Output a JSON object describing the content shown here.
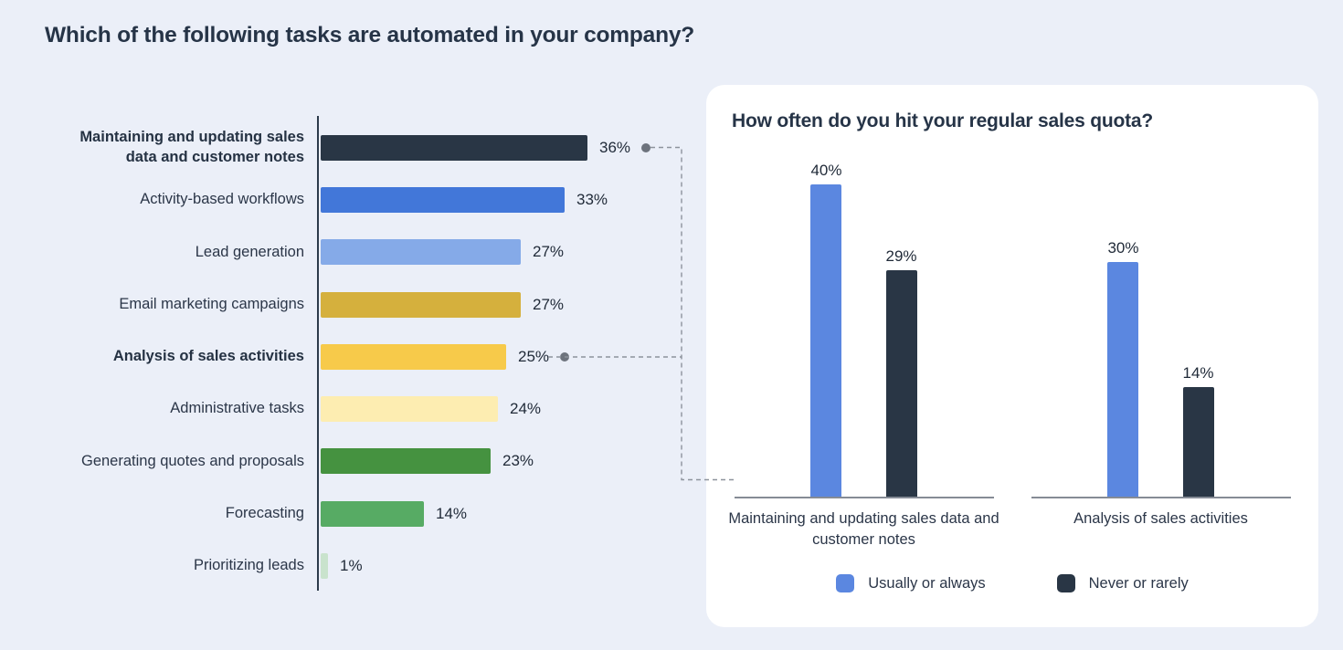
{
  "page": {
    "background": "#ebeff8"
  },
  "connector": {
    "dot_color": "#6d737d",
    "line_color": "#8d939c"
  },
  "chart_data": [
    {
      "type": "bar",
      "orientation": "horizontal",
      "title": "Which of the following tasks are automated in your company?",
      "categories": [
        "Maintaining and updating sales data and customer notes",
        "Activity-based workflows",
        "Lead generation",
        "Email marketing campaigns",
        "Analysis of sales activities",
        "Administrative tasks",
        "Generating quotes and proposals",
        "Forecasting",
        "Prioritizing leads"
      ],
      "values": [
        36,
        33,
        27,
        27,
        25,
        24,
        23,
        14,
        1
      ],
      "value_labels": [
        "36%",
        "33%",
        "27%",
        "27%",
        "25%",
        "24%",
        "23%",
        "14%",
        "1%"
      ],
      "colors": [
        "#293645",
        "#4277d9",
        "#85aae8",
        "#d5b03d",
        "#f7ca4a",
        "#fdedb1",
        "#459240",
        "#57ab64",
        "#c9e3cd"
      ],
      "bold_categories": [
        true,
        false,
        false,
        false,
        true,
        false,
        false,
        false,
        false
      ],
      "connected_to_detail": [
        true,
        false,
        false,
        false,
        true,
        false,
        false,
        false,
        false
      ],
      "xlim": [
        0,
        40
      ],
      "value_suffix": "%",
      "grid": false,
      "legend": "none"
    },
    {
      "type": "bar",
      "orientation": "vertical",
      "grouped": true,
      "title": "How often do you hit your regular sales quota?",
      "categories": [
        "Maintaining and updating sales data and customer notes",
        "Analysis of sales activities"
      ],
      "series": [
        {
          "name": "Usually or always",
          "color": "#5b87e0",
          "values": [
            40,
            30
          ]
        },
        {
          "name": "Never or rarely",
          "color": "#293645",
          "values": [
            29,
            14
          ]
        }
      ],
      "value_labels": [
        [
          "40%",
          "30%"
        ],
        [
          "29%",
          "14%"
        ]
      ],
      "ylim": [
        0,
        44
      ],
      "value_suffix": "%",
      "grid": false,
      "legend_position": "bottom"
    }
  ]
}
